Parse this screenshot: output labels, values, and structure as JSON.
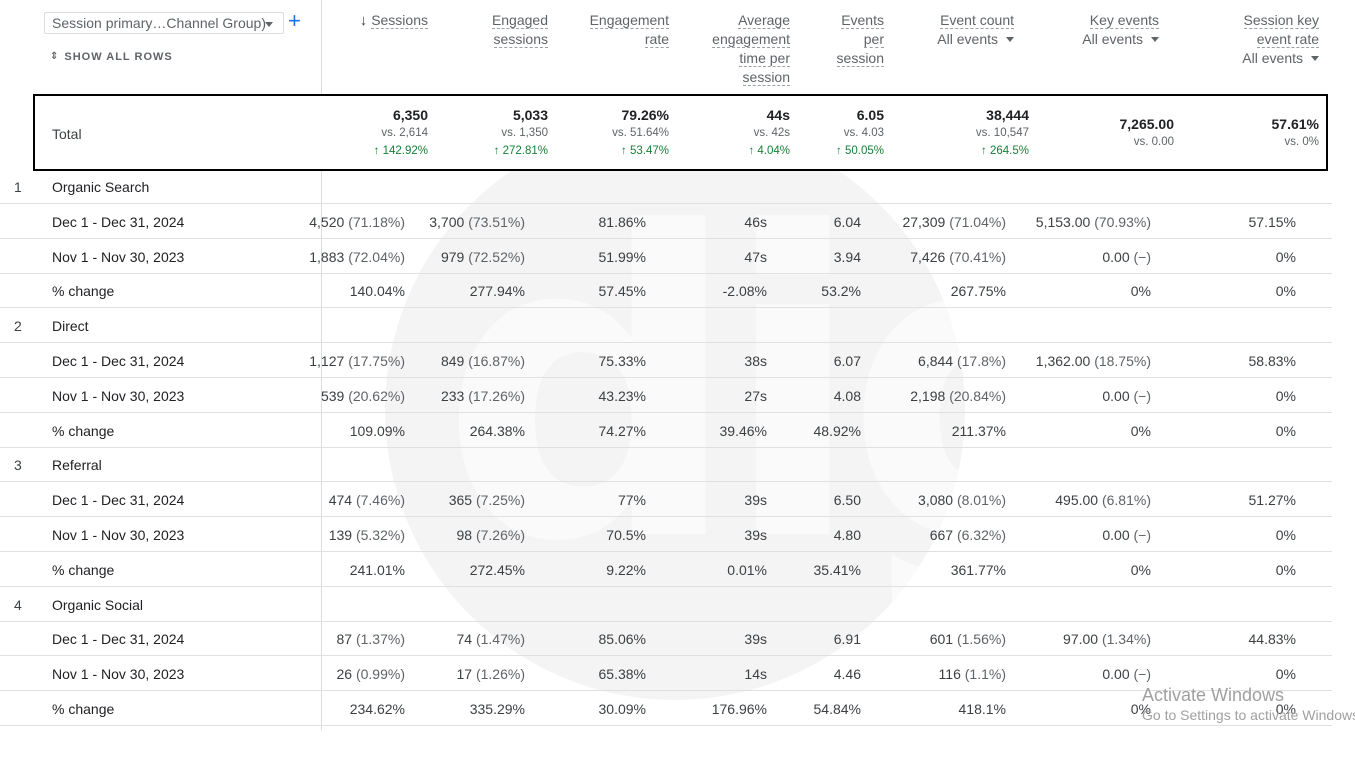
{
  "dimension": {
    "label": "Session primary…Channel Group)"
  },
  "add_label": "+",
  "show_all_rows": "SHOW ALL ROWS",
  "headers": {
    "sessions": "Sessions",
    "engaged_1": "Engaged",
    "engaged_2": "sessions",
    "engrate_1": "Engagement",
    "engrate_2": "rate",
    "avg_1": "Average",
    "avg_2": "engagement",
    "avg_3": "time per",
    "avg_4": "session",
    "eps_1": "Events",
    "eps_2": "per",
    "eps_3": "session",
    "ec": "Event count",
    "ec_filter": "All events",
    "ke": "Key events",
    "ke_filter": "All events",
    "sker_1": "Session key",
    "sker_2": "event rate",
    "sker_filter": "All events"
  },
  "total": {
    "label": "Total",
    "sessions": {
      "v": "6,350",
      "vs": "vs. 2,614",
      "ch": "↑ 142.92%"
    },
    "engaged": {
      "v": "5,033",
      "vs": "vs. 1,350",
      "ch": "↑ 272.81%"
    },
    "engrate": {
      "v": "79.26%",
      "vs": "vs. 51.64%",
      "ch": "↑ 53.47%"
    },
    "avg": {
      "v": "44s",
      "vs": "vs. 42s",
      "ch": "↑ 4.04%"
    },
    "eps": {
      "v": "6.05",
      "vs": "vs. 4.03",
      "ch": "↑ 50.05%"
    },
    "ec": {
      "v": "38,444",
      "vs": "vs. 10,547",
      "ch": "↑ 264.5%"
    },
    "ke": {
      "v": "7,265.00",
      "vs": "vs. 0.00"
    },
    "sker": {
      "v": "57.61%",
      "vs": "vs. 0%"
    }
  },
  "groups": [
    {
      "num": "1",
      "name": "Organic Search",
      "rows": [
        {
          "label": "Dec 1 - Dec 31, 2024",
          "sessions": "4,520",
          "sessions_p": "(71.18%)",
          "engaged": "3,700",
          "engaged_p": "(73.51%)",
          "engrate": "81.86%",
          "avg": "46s",
          "eps": "6.04",
          "ec": "27,309",
          "ec_p": "(71.04%)",
          "ke": "5,153.00",
          "ke_p": "(70.93%)",
          "sker": "57.15%"
        },
        {
          "label": "Nov 1 - Nov 30, 2023",
          "sessions": "1,883",
          "sessions_p": "(72.04%)",
          "engaged": "979",
          "engaged_p": "(72.52%)",
          "engrate": "51.99%",
          "avg": "47s",
          "eps": "3.94",
          "ec": "7,426",
          "ec_p": "(70.41%)",
          "ke": "0.00",
          "ke_p": "(−)",
          "sker": "0%"
        },
        {
          "label": "% change",
          "sessions": "140.04%",
          "sessions_p": "",
          "engaged": "277.94%",
          "engaged_p": "",
          "engrate": "57.45%",
          "avg": "-2.08%",
          "eps": "53.2%",
          "ec": "267.75%",
          "ec_p": "",
          "ke": "0%",
          "ke_p": "",
          "sker": "0%"
        }
      ]
    },
    {
      "num": "2",
      "name": "Direct",
      "rows": [
        {
          "label": "Dec 1 - Dec 31, 2024",
          "sessions": "1,127",
          "sessions_p": "(17.75%)",
          "engaged": "849",
          "engaged_p": "(16.87%)",
          "engrate": "75.33%",
          "avg": "38s",
          "eps": "6.07",
          "ec": "6,844",
          "ec_p": "(17.8%)",
          "ke": "1,362.00",
          "ke_p": "(18.75%)",
          "sker": "58.83%"
        },
        {
          "label": "Nov 1 - Nov 30, 2023",
          "sessions": "539",
          "sessions_p": "(20.62%)",
          "engaged": "233",
          "engaged_p": "(17.26%)",
          "engrate": "43.23%",
          "avg": "27s",
          "eps": "4.08",
          "ec": "2,198",
          "ec_p": "(20.84%)",
          "ke": "0.00",
          "ke_p": "(−)",
          "sker": "0%"
        },
        {
          "label": "% change",
          "sessions": "109.09%",
          "sessions_p": "",
          "engaged": "264.38%",
          "engaged_p": "",
          "engrate": "74.27%",
          "avg": "39.46%",
          "eps": "48.92%",
          "ec": "211.37%",
          "ec_p": "",
          "ke": "0%",
          "ke_p": "",
          "sker": "0%"
        }
      ]
    },
    {
      "num": "3",
      "name": "Referral",
      "rows": [
        {
          "label": "Dec 1 - Dec 31, 2024",
          "sessions": "474",
          "sessions_p": "(7.46%)",
          "engaged": "365",
          "engaged_p": "(7.25%)",
          "engrate": "77%",
          "avg": "39s",
          "eps": "6.50",
          "ec": "3,080",
          "ec_p": "(8.01%)",
          "ke": "495.00",
          "ke_p": "(6.81%)",
          "sker": "51.27%"
        },
        {
          "label": "Nov 1 - Nov 30, 2023",
          "sessions": "139",
          "sessions_p": "(5.32%)",
          "engaged": "98",
          "engaged_p": "(7.26%)",
          "engrate": "70.5%",
          "avg": "39s",
          "eps": "4.80",
          "ec": "667",
          "ec_p": "(6.32%)",
          "ke": "0.00",
          "ke_p": "(−)",
          "sker": "0%"
        },
        {
          "label": "% change",
          "sessions": "241.01%",
          "sessions_p": "",
          "engaged": "272.45%",
          "engaged_p": "",
          "engrate": "9.22%",
          "avg": "0.01%",
          "eps": "35.41%",
          "ec": "361.77%",
          "ec_p": "",
          "ke": "0%",
          "ke_p": "",
          "sker": "0%"
        }
      ]
    },
    {
      "num": "4",
      "name": "Organic Social",
      "rows": [
        {
          "label": "Dec 1 - Dec 31, 2024",
          "sessions": "87",
          "sessions_p": "(1.37%)",
          "engaged": "74",
          "engaged_p": "(1.47%)",
          "engrate": "85.06%",
          "avg": "39s",
          "eps": "6.91",
          "ec": "601",
          "ec_p": "(1.56%)",
          "ke": "97.00",
          "ke_p": "(1.34%)",
          "sker": "44.83%"
        },
        {
          "label": "Nov 1 - Nov 30, 2023",
          "sessions": "26",
          "sessions_p": "(0.99%)",
          "engaged": "17",
          "engaged_p": "(1.26%)",
          "engrate": "65.38%",
          "avg": "14s",
          "eps": "4.46",
          "ec": "116",
          "ec_p": "(1.1%)",
          "ke": "0.00",
          "ke_p": "(−)",
          "sker": "0%"
        },
        {
          "label": "% change",
          "sessions": "234.62%",
          "sessions_p": "",
          "engaged": "335.29%",
          "engaged_p": "",
          "engrate": "30.09%",
          "avg": "176.96%",
          "eps": "54.84%",
          "ec": "418.1%",
          "ec_p": "",
          "ke": "0%",
          "ke_p": "",
          "sker": "0%"
        }
      ]
    }
  ],
  "activate": {
    "line1": "Activate Windows",
    "line2": "Go to Settings to activate Windows."
  }
}
